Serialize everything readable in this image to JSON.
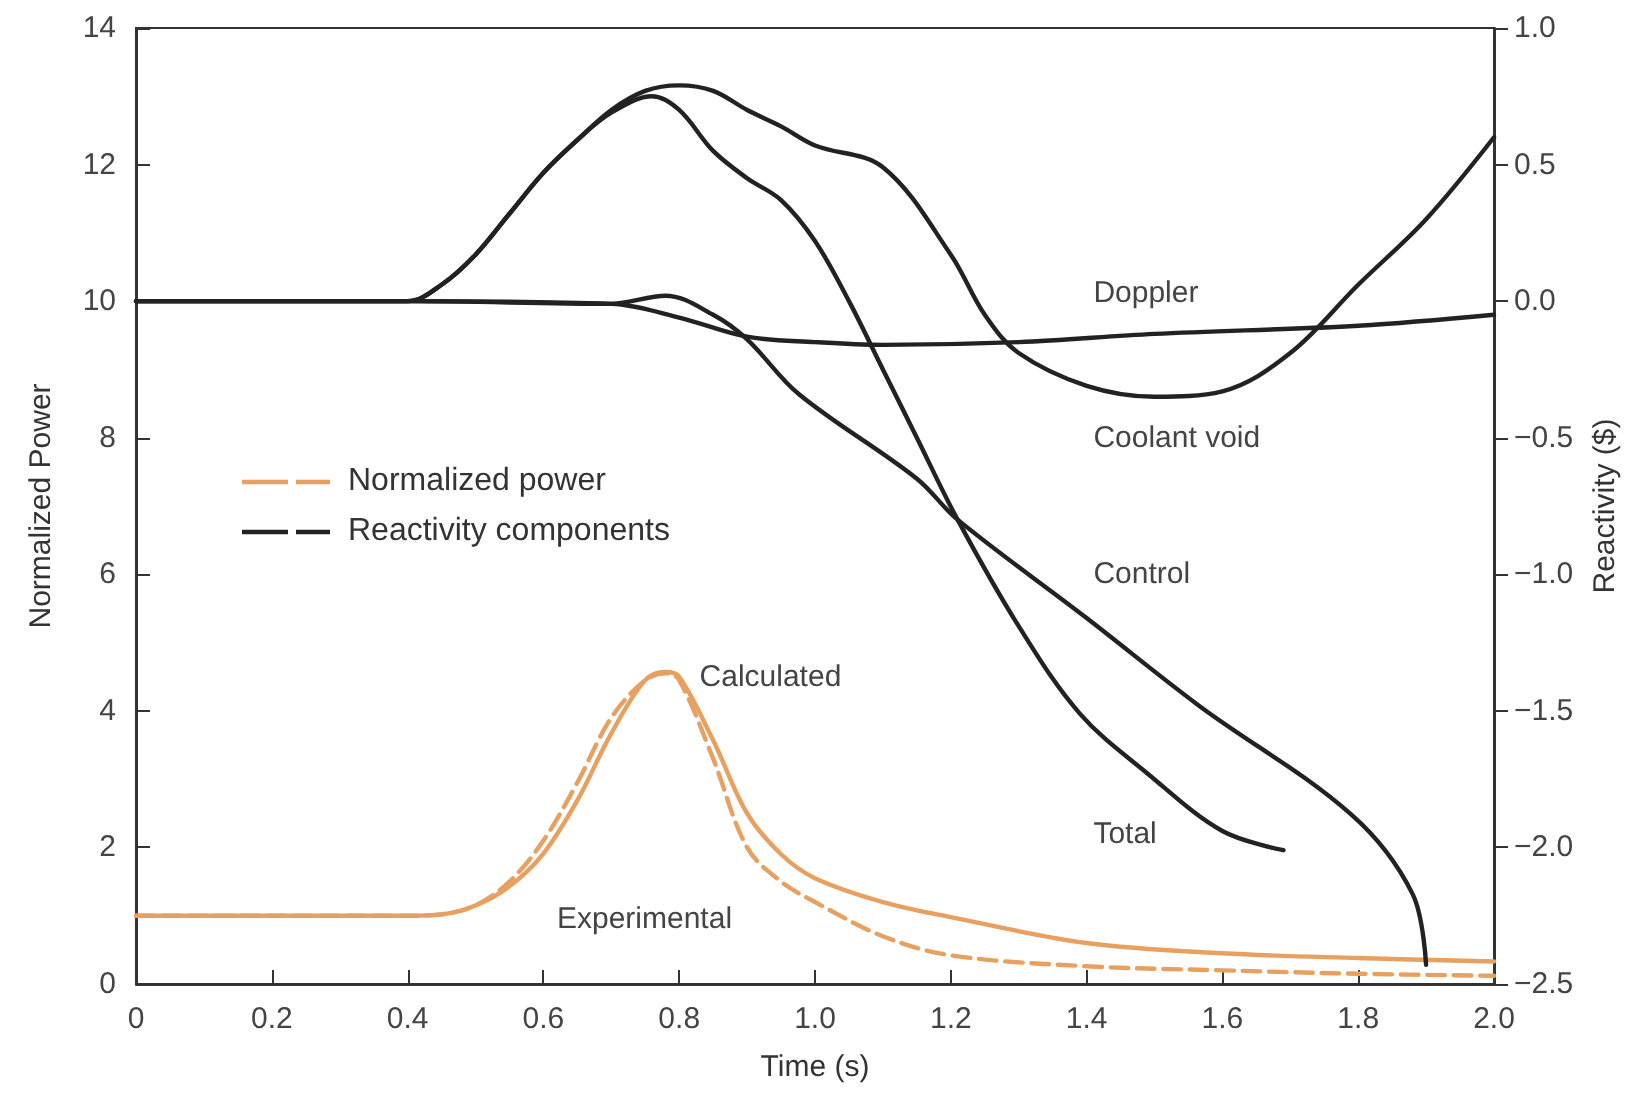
{
  "chart_data": {
    "type": "line",
    "xlabel": "Time (s)",
    "ylabel": "Normalized Power",
    "y2label": "Reactivity ($)",
    "xlim": [
      0,
      2
    ],
    "xticks": [
      0,
      0.2,
      0.4,
      0.6,
      0.8,
      {
        "value": 1,
        "label": "1.0"
      },
      1.2,
      1.4,
      1.6,
      1.8,
      {
        "value": 2,
        "label": "2.0"
      }
    ],
    "ylim": [
      0,
      14
    ],
    "yticks": [
      0,
      2,
      4,
      6,
      8,
      10,
      12,
      14
    ],
    "y2lim": [
      -2.5,
      1
    ],
    "y2ticks": [
      {
        "value": -2.5,
        "label": "−2.5"
      },
      {
        "value": -2,
        "label": "−2.0"
      },
      {
        "value": -1.5,
        "label": "−1.5"
      },
      {
        "value": -1,
        "label": "−1.0"
      },
      {
        "value": -0.5,
        "label": "−0.5"
      },
      {
        "value": 0,
        "label": "0.0"
      },
      {
        "value": 0.5,
        "label": "0.5"
      },
      {
        "value": 1,
        "label": "1.0"
      }
    ],
    "grid": false,
    "marker": "none",
    "annotations": [
      "Normalized power",
      "Reactivity components"
    ],
    "series": [
      {
        "name": "Calculated",
        "color": "#e8a060",
        "x": [
          0,
          0.2,
          0.4,
          0.45,
          0.5,
          0.55,
          0.6,
          0.65,
          0.7,
          0.75,
          0.78,
          0.8,
          0.85,
          0.9,
          0.95,
          1.0,
          1.1,
          1.2,
          1.4,
          1.6,
          1.8,
          2.0
        ],
        "values": [
          1,
          1,
          1,
          1.02,
          1.15,
          1.43,
          1.91,
          2.69,
          3.67,
          4.45,
          4.57,
          4.5,
          3.57,
          2.5,
          1.9,
          1.55,
          1.2,
          0.98,
          0.6,
          0.45,
          0.38,
          0.33
        ]
      },
      {
        "name": "Experimental",
        "color": "#e8a060",
        "line_style": "dashed",
        "x": [
          0,
          0.2,
          0.4,
          0.45,
          0.5,
          0.55,
          0.6,
          0.65,
          0.7,
          0.75,
          0.78,
          0.8,
          0.85,
          0.9,
          0.95,
          1.0,
          1.1,
          1.2,
          1.4,
          1.6,
          1.8,
          2.0
        ],
        "values": [
          1,
          1,
          1,
          1.02,
          1.15,
          1.5,
          2.1,
          2.95,
          3.9,
          4.45,
          4.55,
          4.45,
          3.3,
          2.0,
          1.5,
          1.2,
          0.7,
          0.42,
          0.26,
          0.2,
          0.15,
          0.12
        ]
      },
      {
        "name": "Doppler",
        "color": "#222222",
        "axis": "y2",
        "x": [
          0,
          0.4,
          0.7,
          0.8,
          0.9,
          1.0,
          1.1,
          1.3,
          1.5,
          1.8,
          2.0
        ],
        "values": [
          0,
          0,
          -0.01,
          -0.06,
          -0.13,
          -0.15,
          -0.16,
          -0.15,
          -0.12,
          -0.09,
          -0.05
        ]
      },
      {
        "name": "Coolant void",
        "color": "#222222",
        "axis": "y2",
        "x": [
          0,
          0.4,
          0.45,
          0.5,
          0.55,
          0.6,
          0.65,
          0.7,
          0.75,
          0.8,
          0.85,
          0.9,
          0.95,
          1.0,
          1.1,
          1.2,
          1.25,
          1.3,
          1.4,
          1.5,
          1.6,
          1.7,
          1.8,
          1.9,
          2.0
        ],
        "values": [
          0,
          0,
          0.06,
          0.17,
          0.32,
          0.47,
          0.59,
          0.7,
          0.77,
          0.79,
          0.77,
          0.7,
          0.64,
          0.57,
          0.49,
          0.17,
          -0.05,
          -0.19,
          -0.31,
          -0.35,
          -0.33,
          -0.19,
          0.06,
          0.3,
          0.6
        ]
      },
      {
        "name": "Control",
        "color": "#222222",
        "axis": "y2",
        "x": [
          0,
          0.4,
          0.7,
          0.78,
          0.85,
          0.9,
          0.976,
          1.15,
          1.21,
          1.4,
          1.565,
          1.79,
          1.88,
          1.9
        ],
        "values": [
          0,
          0,
          -0.01,
          0.02,
          -0.05,
          -0.14,
          -0.34,
          -0.65,
          -0.8,
          -1.16,
          -1.48,
          -1.88,
          -2.17,
          -2.43
        ]
      },
      {
        "name": "Total",
        "color": "#222222",
        "axis": "y2",
        "x": [
          0,
          0.4,
          0.45,
          0.5,
          0.55,
          0.6,
          0.65,
          0.7,
          0.76,
          0.8,
          0.85,
          0.9,
          0.95,
          1.0,
          1.05,
          1.1,
          1.15,
          1.21,
          1.3,
          1.39,
          1.49,
          1.6,
          1.69
        ],
        "values": [
          0,
          0,
          0.06,
          0.17,
          0.32,
          0.47,
          0.59,
          0.69,
          0.75,
          0.7,
          0.55,
          0.45,
          0.37,
          0.22,
          0,
          -0.25,
          -0.5,
          -0.8,
          -1.19,
          -1.51,
          -1.73,
          -1.94,
          -2.01
        ]
      }
    ]
  }
}
